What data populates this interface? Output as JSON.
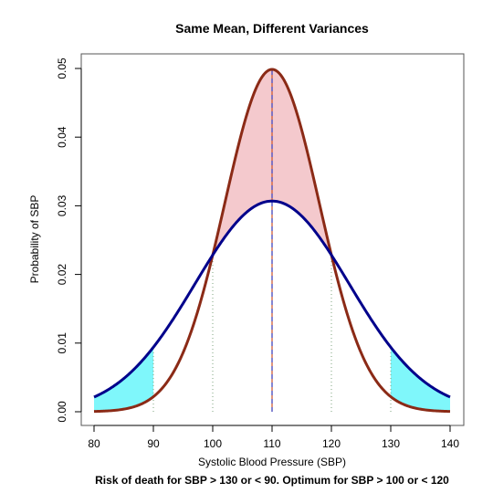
{
  "chart_data": {
    "type": "line",
    "title": "Same Mean, Different Variances",
    "subtitle": "Risk of death for SBP > 130 or < 90. Optimum for SBP > 100 or < 120",
    "xlabel": "Systolic Blood Pressure (SBP)",
    "ylabel": "Probability of SBP",
    "xlim": [
      80,
      140
    ],
    "ylim": [
      0,
      0.05
    ],
    "x_ticks": [
      "80",
      "90",
      "100",
      "110",
      "120",
      "130",
      "140"
    ],
    "y_ticks": [
      "0.00",
      "0.01",
      "0.02",
      "0.03",
      "0.04",
      "0.05"
    ],
    "grid": false,
    "series": [
      {
        "distribution": "normal",
        "mean": 110,
        "sd": 8,
        "color": "#8b2a16"
      },
      {
        "distribution": "normal",
        "mean": 110,
        "sd": 13,
        "color": "#00008b"
      }
    ],
    "shaded_regions": [
      {
        "from": 80,
        "to": 90,
        "color": "#7ff7fb"
      },
      {
        "from": 130,
        "to": 140,
        "color": "#7ff7fb"
      },
      {
        "between_curves": true,
        "color": "#f4c9cd"
      }
    ],
    "reference_lines": [
      {
        "x": 90,
        "color": "#7ca37c",
        "style": "dotted"
      },
      {
        "x": 100,
        "color": "#7ca37c",
        "style": "dotted"
      },
      {
        "x": 110,
        "color": "#c8502a",
        "style": "solid"
      },
      {
        "x": 110,
        "color": "#3b4cd0",
        "style": "dashed"
      },
      {
        "x": 120,
        "color": "#7ca37c",
        "style": "dotted"
      },
      {
        "x": 130,
        "color": "#7ca37c",
        "style": "dotted"
      }
    ]
  }
}
